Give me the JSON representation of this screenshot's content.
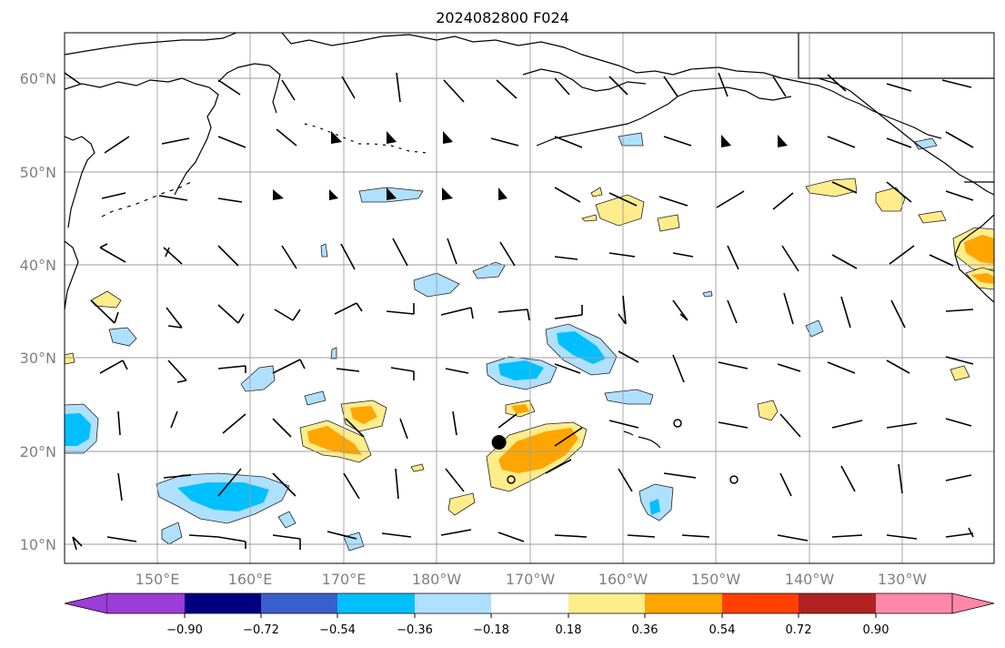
{
  "title": "2024082800 F024",
  "map": {
    "lon_range": [
      140,
      247
    ],
    "lat_range": [
      8,
      65
    ],
    "lon_labels": [
      "150°E",
      "160°E",
      "170°E",
      "180°W",
      "170°W",
      "160°W",
      "150°W",
      "140°W",
      "130°W"
    ],
    "lat_labels": [
      "10°N",
      "20°N",
      "30°N",
      "40°N",
      "50°N",
      "60°N"
    ],
    "marker": {
      "lon": 190,
      "lat": 21
    }
  },
  "colorbar": {
    "ticks": [
      "−0.90",
      "−0.72",
      "−0.54",
      "−0.36",
      "−0.18",
      "0.18",
      "0.36",
      "0.54",
      "0.72",
      "0.90"
    ],
    "colors": [
      "#9b3dd6",
      "#000080",
      "#3a5fcd",
      "#00bfff",
      "#b0e0ff",
      "#ffffff",
      "#ffec8b",
      "#ffa500",
      "#ff4000",
      "#b22222",
      "#ff88aa"
    ]
  }
}
